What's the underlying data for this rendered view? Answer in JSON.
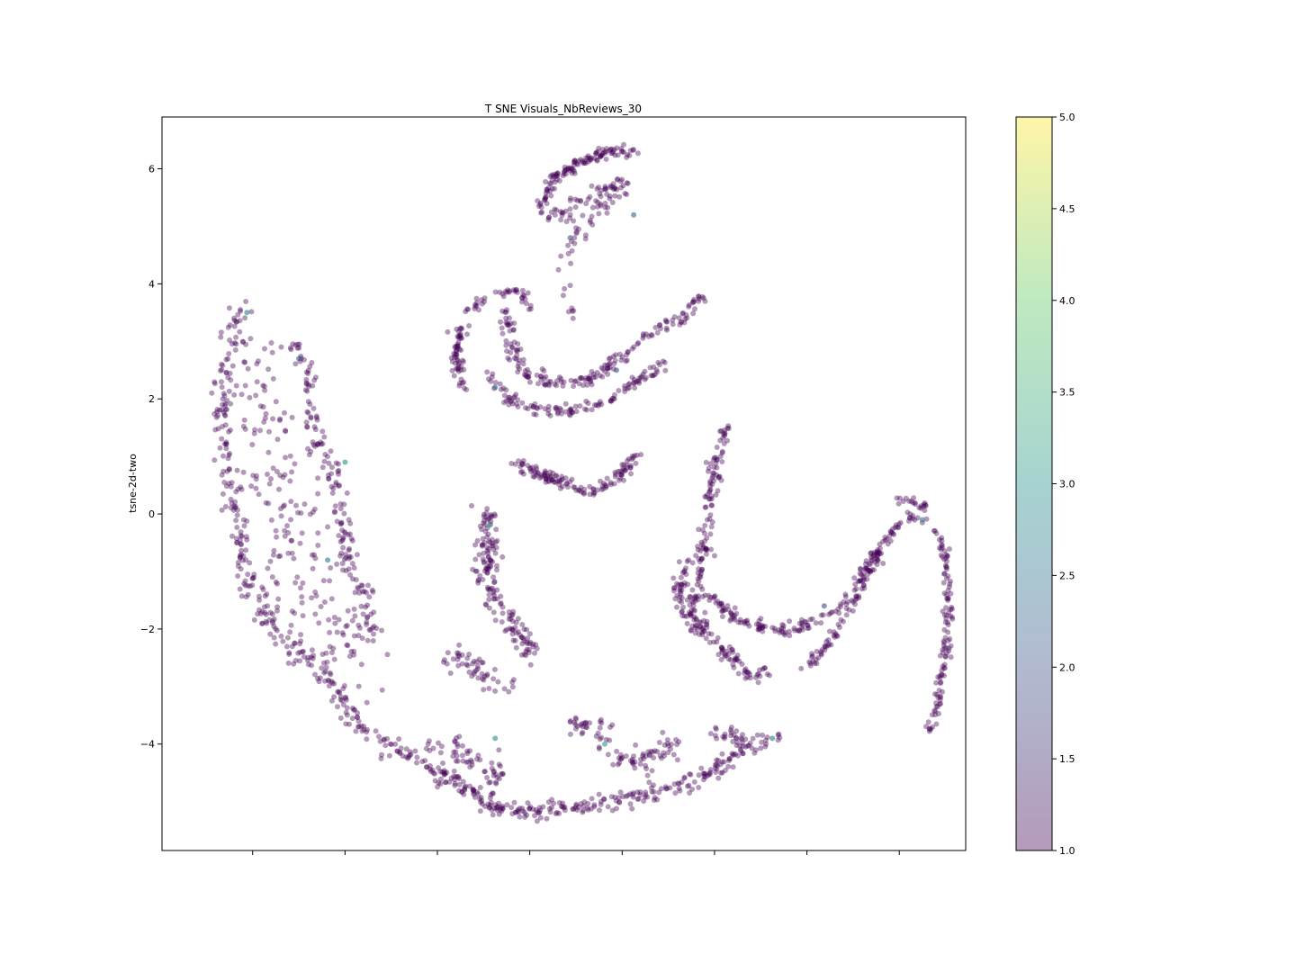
{
  "chart_data": {
    "type": "scatter",
    "title": "T SNE Visuals_NbReviews_30",
    "xlabel": "",
    "ylabel": "tsne-2d-two",
    "ylim": [
      -5.85,
      6.9
    ],
    "xlim": [
      -6.97,
      6.95
    ],
    "x_ticks": [
      -5.4,
      -3.8,
      -2.2,
      -0.6,
      1.0,
      2.6,
      4.2,
      5.8
    ],
    "x_tick_labels_visible": false,
    "y_ticks": [
      {
        "value": 6,
        "label": "6"
      },
      {
        "value": 4,
        "label": "4"
      },
      {
        "value": 2,
        "label": "2"
      },
      {
        "value": 0,
        "label": "0"
      },
      {
        "value": -2,
        "label": "−2"
      },
      {
        "value": -4,
        "label": "−4"
      }
    ],
    "grid": false,
    "point_alpha": 0.4,
    "colormap": "viridis",
    "colormap_stops": [
      "#440154",
      "#3b528b",
      "#21918c",
      "#5ec962",
      "#fde725"
    ],
    "colorbar": {
      "range": [
        1.0,
        5.0
      ],
      "ticks": [
        "1.0",
        "1.5",
        "2.0",
        "2.5",
        "3.0",
        "3.5",
        "4.0",
        "4.5",
        "5.0"
      ]
    },
    "clusters": [
      {
        "name": "left-arc-outer",
        "path": [
          [
            -5.6,
            3.6
          ],
          [
            -5.8,
            3.0
          ],
          [
            -5.95,
            2.0
          ],
          [
            -5.85,
            1.0
          ],
          [
            -5.75,
            0.2
          ],
          [
            -5.5,
            -0.9
          ],
          [
            -5.2,
            -1.8
          ],
          [
            -4.8,
            -2.3
          ],
          [
            -4.3,
            -2.6
          ],
          [
            -4.0,
            -3.0
          ],
          [
            -3.4,
            -3.9
          ]
        ],
        "spread": 0.09,
        "count": 260
      },
      {
        "name": "left-arc-inner",
        "path": [
          [
            -4.7,
            3.0
          ],
          [
            -4.45,
            2.5
          ],
          [
            -4.35,
            1.5
          ],
          [
            -4.05,
            0.8
          ],
          [
            -3.85,
            0.2
          ],
          [
            -3.8,
            -0.6
          ],
          [
            -3.55,
            -1.3
          ],
          [
            -3.3,
            -2.1
          ]
        ],
        "spread": 0.08,
        "count": 150
      },
      {
        "name": "left-arc-fill",
        "path": [
          [
            -5.2,
            2.9
          ],
          [
            -5.3,
            2.3
          ],
          [
            -5.2,
            1.5
          ],
          [
            -5.0,
            0.5
          ],
          [
            -4.8,
            -0.3
          ],
          [
            -4.5,
            -1.2
          ],
          [
            -4.1,
            -2.0
          ],
          [
            -3.7,
            -2.5
          ]
        ],
        "spread": 0.35,
        "count": 200
      },
      {
        "name": "bottom-arc",
        "path": [
          [
            -3.2,
            -3.9
          ],
          [
            -2.5,
            -4.3
          ],
          [
            -1.9,
            -4.7
          ],
          [
            -1.2,
            -5.1
          ],
          [
            -0.6,
            -5.2
          ],
          [
            0.2,
            -5.1
          ],
          [
            1.0,
            -4.95
          ],
          [
            1.8,
            -4.8
          ],
          [
            2.5,
            -4.5
          ],
          [
            3.2,
            -4.0
          ]
        ],
        "spread": 0.08,
        "count": 300
      },
      {
        "name": "bottom-inner-left",
        "path": [
          [
            -2.3,
            -4.0
          ],
          [
            -1.6,
            -4.3
          ],
          [
            -1.1,
            -4.6
          ]
        ],
        "spread": 0.12,
        "count": 60
      },
      {
        "name": "bottom-middle",
        "path": [
          [
            0.1,
            -3.6
          ],
          [
            0.6,
            -3.75
          ],
          [
            0.8,
            -4.2
          ],
          [
            1.4,
            -4.3
          ],
          [
            1.9,
            -4.0
          ]
        ],
        "spread": 0.1,
        "count": 90
      },
      {
        "name": "bottom-right-short",
        "path": [
          [
            2.6,
            -3.8
          ],
          [
            3.3,
            -4.0
          ],
          [
            3.7,
            -3.9
          ]
        ],
        "spread": 0.08,
        "count": 40
      },
      {
        "name": "bottom-small-left",
        "path": [
          [
            -2.0,
            -2.5
          ],
          [
            -1.5,
            -2.7
          ],
          [
            -1.2,
            -2.9
          ],
          [
            -0.8,
            -3.0
          ]
        ],
        "spread": 0.12,
        "count": 50
      },
      {
        "name": "middle-left-stem",
        "path": [
          [
            -1.35,
            0.0
          ],
          [
            -1.35,
            -0.6
          ],
          [
            -1.3,
            -1.3
          ],
          [
            -1.0,
            -1.8
          ],
          [
            -0.75,
            -2.2
          ],
          [
            -0.55,
            -2.4
          ]
        ],
        "spread": 0.1,
        "count": 160
      },
      {
        "name": "center-smile",
        "path": [
          [
            -0.85,
            0.9
          ],
          [
            -0.4,
            0.7
          ],
          [
            0.1,
            0.5
          ],
          [
            0.5,
            0.4
          ],
          [
            0.9,
            0.6
          ],
          [
            1.3,
            1.1
          ]
        ],
        "spread": 0.05,
        "count": 130
      },
      {
        "name": "top-horseshoe-outer",
        "path": [
          [
            -1.8,
            3.3
          ],
          [
            -1.85,
            2.6
          ],
          [
            -1.75,
            2.2
          ]
        ],
        "spread": 0.06,
        "count": 60
      },
      {
        "name": "top-horseshoe-top",
        "path": [
          [
            -1.75,
            3.45
          ],
          [
            -1.3,
            3.8
          ],
          [
            -0.7,
            3.9
          ],
          [
            -0.65,
            3.6
          ]
        ],
        "spread": 0.05,
        "count": 40
      },
      {
        "name": "top-horseshoe-inner",
        "path": [
          [
            -1.0,
            3.5
          ],
          [
            -0.9,
            2.8
          ],
          [
            -0.7,
            2.4
          ],
          [
            -0.2,
            2.3
          ],
          [
            0.4,
            2.3
          ],
          [
            0.8,
            2.6
          ],
          [
            1.5,
            3.1
          ],
          [
            2.1,
            3.5
          ],
          [
            2.4,
            3.8
          ]
        ],
        "spread": 0.06,
        "count": 180
      },
      {
        "name": "top-horseshoe-lower",
        "path": [
          [
            -1.3,
            2.4
          ],
          [
            -1.0,
            2.0
          ],
          [
            -0.4,
            1.8
          ],
          [
            0.2,
            1.8
          ],
          [
            0.8,
            2.0
          ],
          [
            1.4,
            2.4
          ],
          [
            1.7,
            2.6
          ]
        ],
        "spread": 0.05,
        "count": 120
      },
      {
        "name": "top-cap-arc",
        "path": [
          [
            -0.45,
            5.3
          ],
          [
            -0.2,
            5.8
          ],
          [
            0.3,
            6.15
          ],
          [
            0.8,
            6.3
          ],
          [
            1.2,
            6.3
          ]
        ],
        "spread": 0.05,
        "count": 120
      },
      {
        "name": "top-cap-inner",
        "path": [
          [
            -0.3,
            5.1
          ],
          [
            0.1,
            5.3
          ],
          [
            0.6,
            5.6
          ],
          [
            1.0,
            5.8
          ],
          [
            1.0,
            5.6
          ],
          [
            0.3,
            4.9
          ],
          [
            0.0,
            4.6
          ]
        ],
        "spread": 0.08,
        "count": 90
      },
      {
        "name": "top-cap-drip",
        "path": [
          [
            0.0,
            4.5
          ],
          [
            0.0,
            3.8
          ],
          [
            0.2,
            3.4
          ]
        ],
        "spread": 0.08,
        "count": 12
      },
      {
        "name": "right-hook-upper",
        "path": [
          [
            2.8,
            1.5
          ],
          [
            2.6,
            0.8
          ],
          [
            2.5,
            0.0
          ],
          [
            2.4,
            -0.6
          ],
          [
            2.35,
            -1.0
          ],
          [
            2.25,
            -1.5
          ],
          [
            2.35,
            -2.1
          ]
        ],
        "spread": 0.06,
        "count": 140
      },
      {
        "name": "right-hook-curve",
        "path": [
          [
            2.1,
            -0.8
          ],
          [
            2.0,
            -1.3
          ],
          [
            2.1,
            -1.7
          ],
          [
            2.4,
            -2.1
          ],
          [
            2.7,
            -2.3
          ],
          [
            3.0,
            -2.6
          ],
          [
            3.2,
            -2.8
          ],
          [
            3.6,
            -2.7
          ]
        ],
        "spread": 0.07,
        "count": 120
      },
      {
        "name": "right-hook-floor",
        "path": [
          [
            2.5,
            -1.4
          ],
          [
            2.8,
            -1.7
          ],
          [
            3.3,
            -1.95
          ],
          [
            3.8,
            -2.0
          ],
          [
            4.3,
            -1.9
          ],
          [
            4.8,
            -1.6
          ],
          [
            5.2,
            -1.0
          ],
          [
            5.5,
            -0.6
          ]
        ],
        "spread": 0.05,
        "count": 150
      },
      {
        "name": "right-tail-arc",
        "path": [
          [
            4.2,
            -2.7
          ],
          [
            4.6,
            -2.2
          ],
          [
            5.0,
            -1.6
          ],
          [
            5.3,
            -0.9
          ],
          [
            5.6,
            -0.4
          ],
          [
            5.9,
            -0.05
          ],
          [
            6.2,
            -0.05
          ],
          [
            6.45,
            -0.3
          ],
          [
            6.6,
            -0.8
          ],
          [
            6.65,
            -1.5
          ],
          [
            6.6,
            -2.3
          ],
          [
            6.5,
            -3.0
          ],
          [
            6.35,
            -3.8
          ]
        ],
        "spread": 0.04,
        "count": 220
      },
      {
        "name": "right-tail-top",
        "path": [
          [
            5.7,
            0.3
          ],
          [
            6.0,
            0.2
          ],
          [
            6.3,
            0.1
          ]
        ],
        "spread": 0.04,
        "count": 20
      }
    ],
    "accent_points": [
      {
        "x": -5.5,
        "y": 3.5,
        "v": 2.8
      },
      {
        "x": -4.6,
        "y": 2.7,
        "v": 2.2
      },
      {
        "x": -3.8,
        "y": 0.9,
        "v": 3.0
      },
      {
        "x": -4.1,
        "y": -0.8,
        "v": 2.6
      },
      {
        "x": -1.3,
        "y": -0.2,
        "v": 3.2
      },
      {
        "x": -1.2,
        "y": 2.2,
        "v": 2.4
      },
      {
        "x": 1.2,
        "y": 5.2,
        "v": 2.3
      },
      {
        "x": 0.1,
        "y": 4.8,
        "v": 2.1
      },
      {
        "x": 0.7,
        "y": -4.0,
        "v": 3.1
      },
      {
        "x": -1.2,
        "y": -3.9,
        "v": 2.9
      },
      {
        "x": 4.5,
        "y": -1.6,
        "v": 2.0
      },
      {
        "x": 6.2,
        "y": -0.1,
        "v": 2.6
      },
      {
        "x": 3.6,
        "y": -3.9,
        "v": 2.7
      },
      {
        "x": 0.9,
        "y": 2.5,
        "v": 1.9
      }
    ]
  }
}
